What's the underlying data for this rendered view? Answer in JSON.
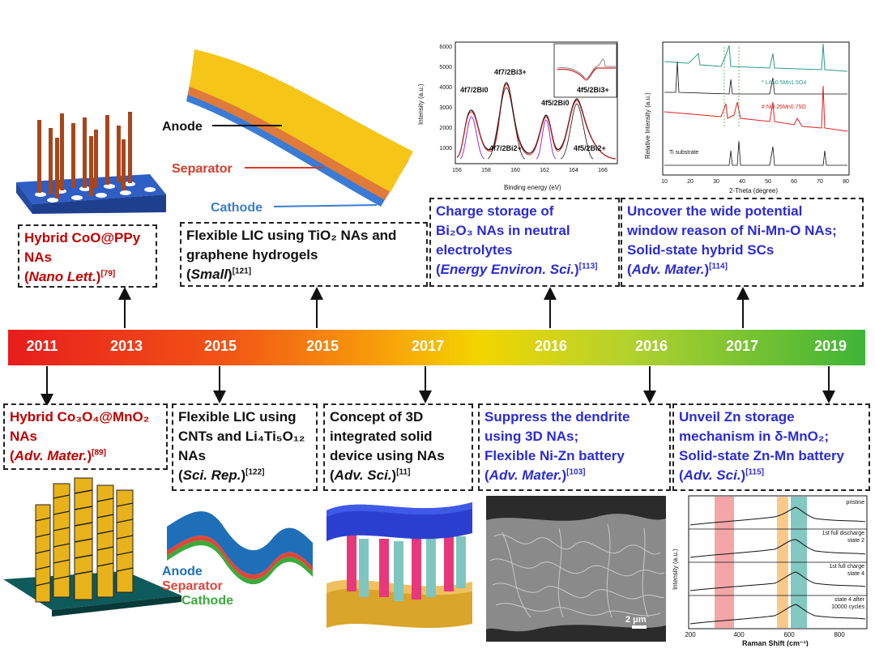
{
  "timeline": {
    "years": [
      "2011",
      "2013",
      "2015",
      "2015",
      "2017",
      "2016",
      "2016",
      "2017",
      "2019"
    ]
  },
  "boxes_top": [
    {
      "lines": [
        "Hybrid CoO@PPy",
        "NAs"
      ],
      "journal": "Nano Lett.",
      "ref": "[79]",
      "color": "#c00000"
    },
    {
      "lines": [
        "Flexible LIC using TiO₂ NAs and",
        "graphene hydrogels"
      ],
      "journal": "Small",
      "ref": "[121]",
      "color": "#111111"
    },
    {
      "lines": [
        "Charge storage of",
        "Bi₂O₃ NAs in neutral",
        "electrolytes"
      ],
      "journal": "Energy Environ. Sci.",
      "ref": "[113]",
      "color": "#2b2bd6"
    },
    {
      "lines": [
        "Uncover the wide potential",
        "window reason of Ni-Mn-O NAs;",
        "Solid-state hybrid SCs"
      ],
      "journal": "Adv. Mater.",
      "ref": "[114]",
      "color": "#2b2bd6"
    }
  ],
  "boxes_bottom": [
    {
      "lines": [
        "Hybrid Co₃O₄@MnO₂",
        "NAs"
      ],
      "journal": "Adv. Mater.",
      "ref": "[89]",
      "color": "#c00000"
    },
    {
      "lines": [
        "Flexible LIC using",
        "CNTs and Li₄Ti₅O₁₂",
        "NAs"
      ],
      "journal": "Sci. Rep.",
      "ref": "[122]",
      "color": "#111111"
    },
    {
      "lines": [
        "Concept of 3D",
        "integrated solid",
        "device using NAs"
      ],
      "journal": "Adv. Sci.",
      "ref": "[11]",
      "color": "#111111"
    },
    {
      "lines": [
        "Suppress the dendrite",
        "using 3D NAs;",
        "Flexible Ni-Zn battery"
      ],
      "journal": "Adv. Mater.",
      "ref": "[103]",
      "color": "#2b2bd6"
    },
    {
      "lines": [
        "Unveil Zn storage",
        "mechanism in δ-MnO₂;",
        "Solid-state Zn-Mn battery"
      ],
      "journal": "Adv. Sci.",
      "ref": "[115]",
      "color": "#2b2bd6"
    }
  ],
  "illustrations": {
    "lic_top": {
      "anode": "Anode",
      "separator": "Separator",
      "cathode": "Cathode"
    },
    "lic_bottom": {
      "anode": "Anode",
      "separator": "Separator",
      "cathode": "Cathode"
    },
    "xps": {
      "xlabel": "Binding energy (eV)",
      "ylabel": "Intensity (a.u.)",
      "xticks": [
        "156",
        "158",
        "160",
        "162",
        "164",
        "166"
      ],
      "yticks": [
        "1000",
        "2000",
        "3000",
        "4000",
        "5000",
        "6000"
      ],
      "peaks": [
        "4f7/2Bi0",
        "4f7/2Bi3+",
        "4f5/2Bi0",
        "4f5/2Bi3+",
        "4f7/2Bi2+",
        "4f5/2Bi2+"
      ]
    },
    "xrd": {
      "xlabel": "2-Theta (degree)",
      "ylabel": "Relative Intensity (a.u.)",
      "xticks": [
        "10",
        "20",
        "30",
        "40",
        "50",
        "60",
        "70",
        "80"
      ],
      "legend1": "* LiNi0.5Mn1.5O4",
      "legend2": "# Ni0.26Mn0.75O",
      "substrate": "Ti substrate"
    },
    "sem": {
      "scale": "2 μm"
    },
    "raman": {
      "xlabel": "Raman Shift (cm⁻¹)",
      "ylabel": "Intensity (a.u.)",
      "xticks": [
        "200",
        "400",
        "600",
        "800"
      ],
      "labels": [
        "pristine",
        "1st full discharge",
        "state 2",
        "1st full charge",
        "state 4",
        "state 4 after",
        "10000 cycles"
      ]
    }
  }
}
